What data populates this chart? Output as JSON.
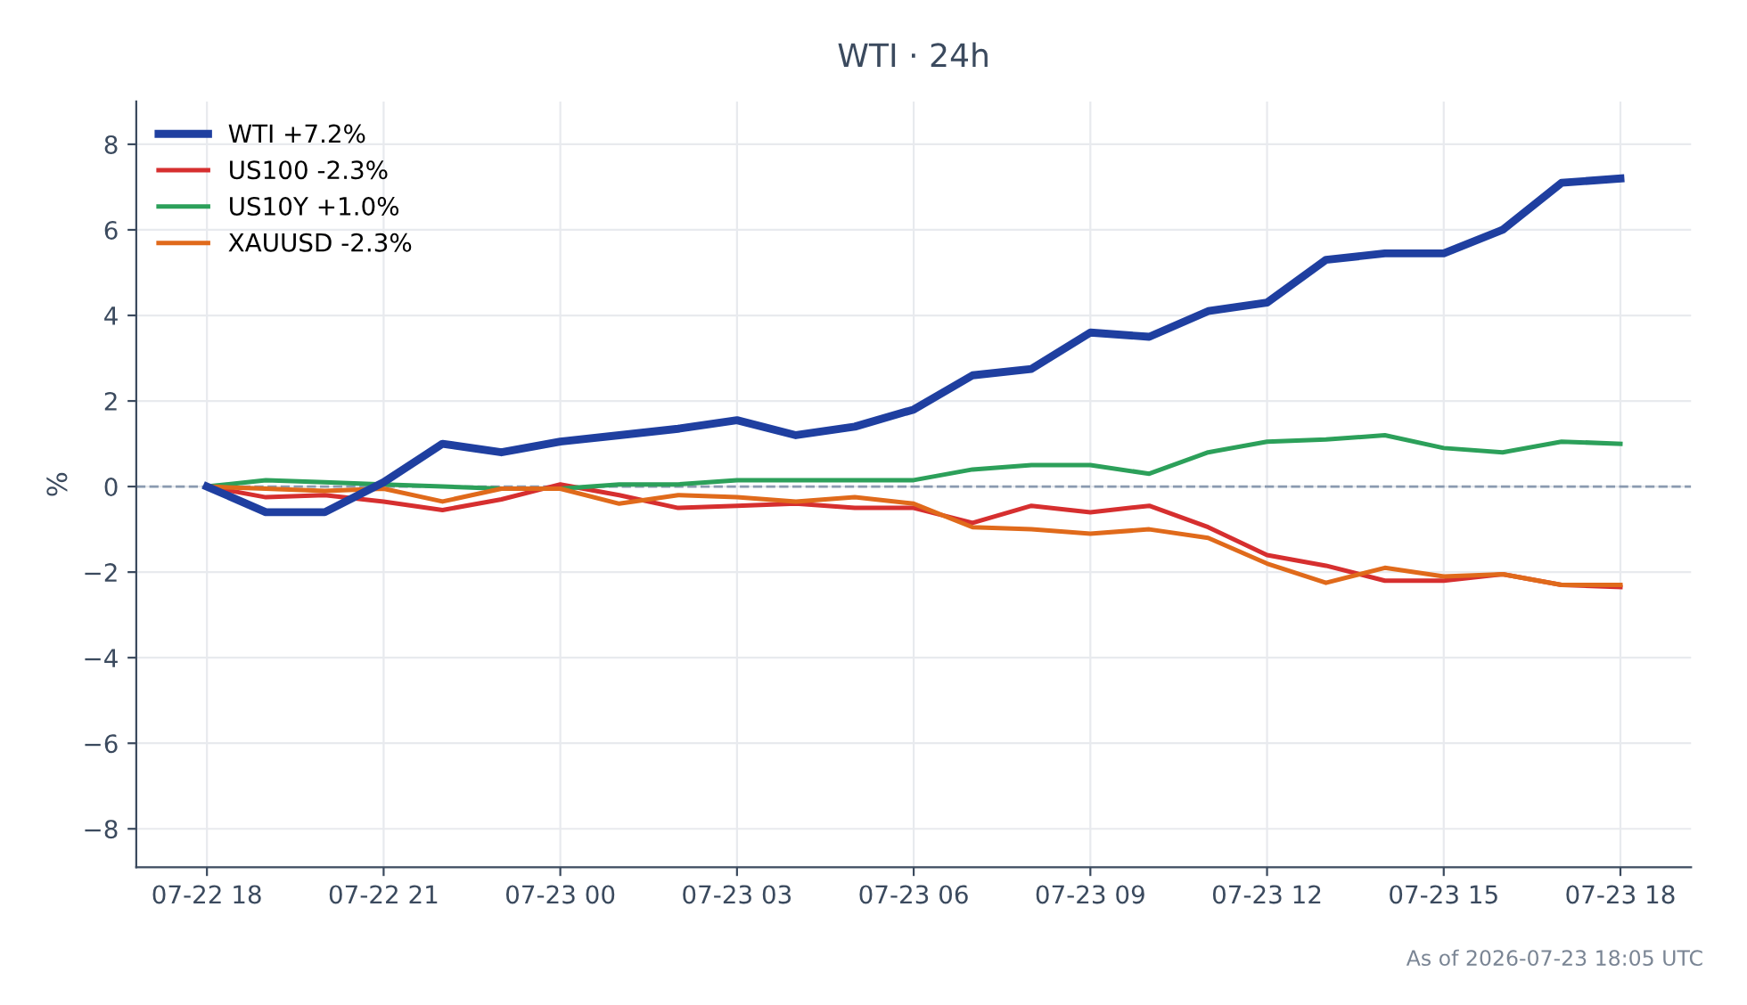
{
  "chart_data": {
    "type": "line",
    "title": "WTI · 24h",
    "ylabel": "%",
    "x": [
      "2026-07-22T18:00",
      "2026-07-22T19:00",
      "2026-07-22T20:00",
      "2026-07-22T21:00",
      "2026-07-22T22:00",
      "2026-07-22T23:00",
      "2026-07-23T00:00",
      "2026-07-23T01:00",
      "2026-07-23T02:00",
      "2026-07-23T03:00",
      "2026-07-23T04:00",
      "2026-07-23T05:00",
      "2026-07-23T06:00",
      "2026-07-23T07:00",
      "2026-07-23T08:00",
      "2026-07-23T09:00",
      "2026-07-23T10:00",
      "2026-07-23T11:00",
      "2026-07-23T12:00",
      "2026-07-23T13:00",
      "2026-07-23T14:00",
      "2026-07-23T15:00",
      "2026-07-23T16:00",
      "2026-07-23T17:00",
      "2026-07-23T18:00"
    ],
    "series": [
      {
        "name": "WTI +7.2%",
        "color": "#1f3fa0",
        "values": [
          0,
          -0.6,
          -0.6,
          0.1,
          1.0,
          0.8,
          1.05,
          1.2,
          1.35,
          1.55,
          1.2,
          1.4,
          1.8,
          2.6,
          2.75,
          3.6,
          3.5,
          4.1,
          4.3,
          5.3,
          5.45,
          5.45,
          6.0,
          7.1,
          7.2
        ]
      },
      {
        "name": "US100 -2.3%",
        "color": "#d62f2f",
        "values": [
          0,
          -0.25,
          -0.2,
          -0.35,
          -0.55,
          -0.3,
          0.05,
          -0.2,
          -0.5,
          -0.45,
          -0.4,
          -0.5,
          -0.5,
          -0.85,
          -0.45,
          -0.6,
          -0.45,
          -0.95,
          -1.6,
          -1.85,
          -2.2,
          -2.2,
          -2.05,
          -2.3,
          -2.35
        ]
      },
      {
        "name": "US10Y +1.0%",
        "color": "#2ca05a",
        "values": [
          0,
          0.15,
          0.1,
          0.05,
          0,
          -0.05,
          -0.05,
          0.05,
          0.05,
          0.15,
          0.15,
          0.15,
          0.15,
          0.4,
          0.5,
          0.5,
          0.3,
          0.8,
          1.05,
          1.1,
          1.2,
          0.9,
          0.8,
          1.05,
          1.0
        ]
      },
      {
        "name": "XAUUSD -2.3%",
        "color": "#e06a1b",
        "values": [
          0,
          -0.05,
          -0.1,
          -0.05,
          -0.35,
          -0.05,
          -0.05,
          -0.4,
          -0.2,
          -0.25,
          -0.35,
          -0.25,
          -0.4,
          -0.95,
          -1.0,
          -1.1,
          -1.0,
          -1.2,
          -1.8,
          -2.25,
          -1.9,
          -2.1,
          -2.05,
          -2.3,
          -2.3
        ]
      }
    ],
    "xlim": [
      "2026-07-22T16:48",
      "2026-07-23T19:12"
    ],
    "xticks": [
      {
        "value": "2026-07-22T18:00",
        "label": "07-22 18"
      },
      {
        "value": "2026-07-22T21:00",
        "label": "07-22 21"
      },
      {
        "value": "2026-07-23T00:00",
        "label": "07-23 00"
      },
      {
        "value": "2026-07-23T03:00",
        "label": "07-23 03"
      },
      {
        "value": "2026-07-23T06:00",
        "label": "07-23 06"
      },
      {
        "value": "2026-07-23T09:00",
        "label": "07-23 09"
      },
      {
        "value": "2026-07-23T12:00",
        "label": "07-23 12"
      },
      {
        "value": "2026-07-23T15:00",
        "label": "07-23 15"
      },
      {
        "value": "2026-07-23T18:00",
        "label": "07-23 18"
      }
    ],
    "ylim": [
      -8.9,
      9
    ],
    "yticks": [
      {
        "value": -8,
        "label": "−8"
      },
      {
        "value": -6,
        "label": "−6"
      },
      {
        "value": -4,
        "label": "−4"
      },
      {
        "value": -2,
        "label": "−2"
      },
      0,
      2,
      4,
      6,
      8
    ],
    "ref_lines": [
      {
        "axis": "y",
        "value": 0,
        "color": "#8a9ab0",
        "line_style": "dashed"
      }
    ],
    "grid": true,
    "legend": "top left",
    "marker": "none",
    "line_style": "solid",
    "annotations": [
      "As of 2026-07-23 18:05 UTC"
    ]
  }
}
